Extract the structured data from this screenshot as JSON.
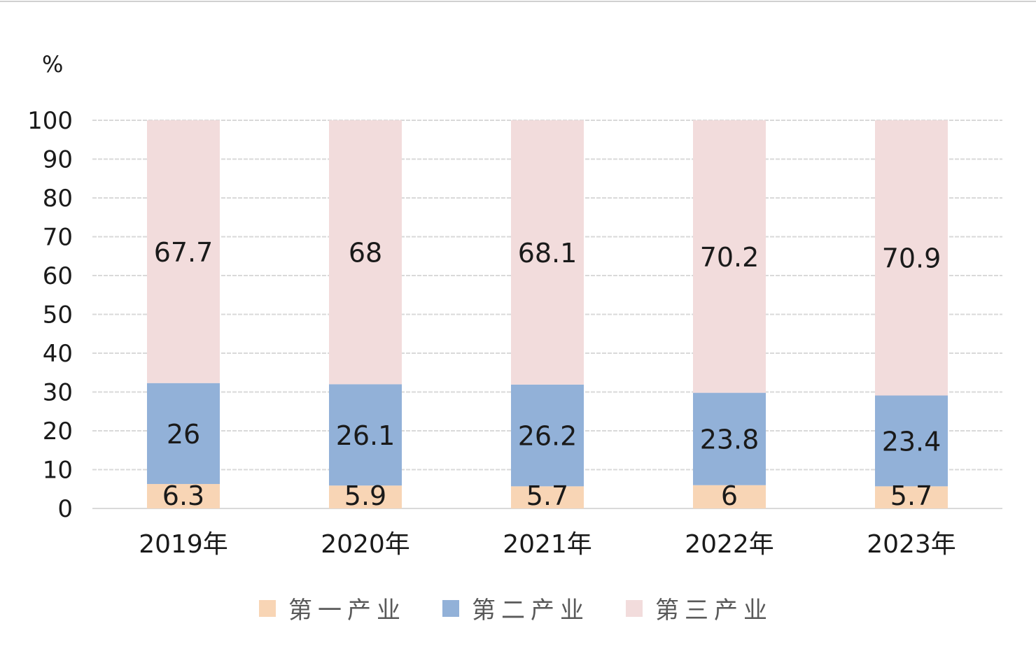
{
  "chart_data": {
    "type": "bar",
    "stacked": true,
    "unit": "%",
    "categories": [
      "2019年",
      "2020年",
      "2021年",
      "2022年",
      "2023年"
    ],
    "series": [
      {
        "name": "第一产业",
        "values": [
          6.3,
          5.9,
          5.7,
          6,
          5.7
        ],
        "labels": [
          "6.3",
          "5.9",
          "5.7",
          "6",
          "5.7"
        ],
        "color": "#f8d5b5"
      },
      {
        "name": "第二产业",
        "values": [
          26,
          26.1,
          26.2,
          23.8,
          23.4
        ],
        "labels": [
          "26",
          "26.1",
          "26.2",
          "23.8",
          "23.4"
        ],
        "color": "#92b1d8"
      },
      {
        "name": "第三产业",
        "values": [
          67.7,
          68,
          68.1,
          70.2,
          70.9
        ],
        "labels": [
          "67.7",
          "68",
          "68.1",
          "70.2",
          "70.9"
        ],
        "color": "#f2dcdc"
      }
    ],
    "ylim": [
      0,
      100
    ],
    "yticks": [
      "0",
      "10",
      "20",
      "30",
      "40",
      "50",
      "60",
      "70",
      "80",
      "90",
      "100"
    ],
    "grid": true,
    "legend_position": "bottom"
  }
}
